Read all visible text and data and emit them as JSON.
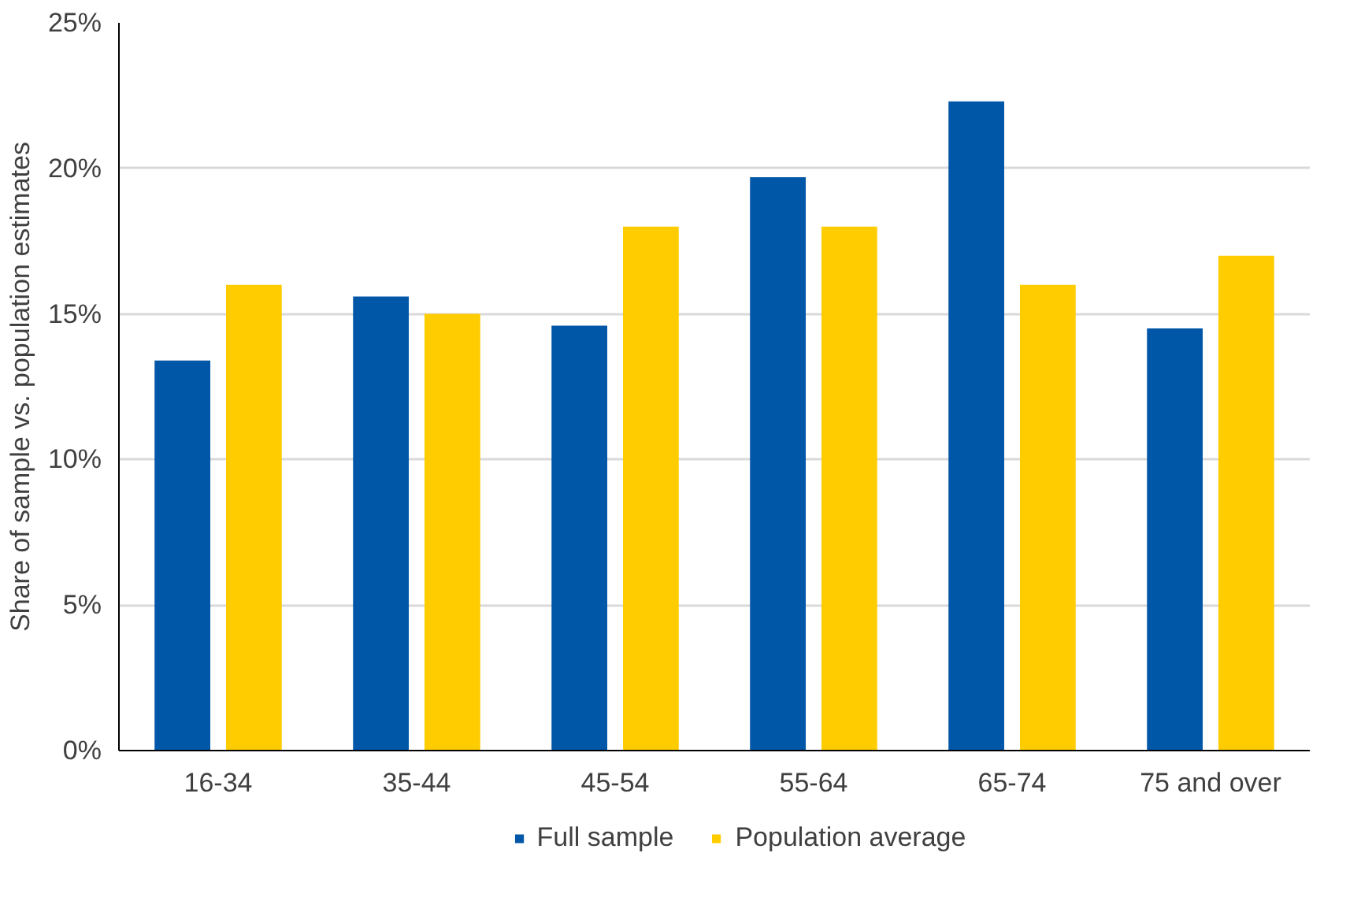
{
  "chart_data": {
    "type": "bar",
    "ylabel": "Share of sample vs. population estimates",
    "categories": [
      "16-34",
      "35-44",
      "45-54",
      "55-64",
      "65-74",
      "75 and over"
    ],
    "series": [
      {
        "name": "Full sample",
        "color": "#0056a7",
        "values": [
          13.4,
          15.6,
          14.6,
          19.7,
          22.3,
          14.5
        ]
      },
      {
        "name": "Population average",
        "color": "#ffcc00",
        "values": [
          16,
          15,
          18,
          18,
          16,
          17
        ]
      }
    ],
    "ylim": [
      0,
      25
    ],
    "yticks": [
      {
        "value": 0,
        "label": "0%"
      },
      {
        "value": 5,
        "label": "5%"
      },
      {
        "value": 10,
        "label": "10%"
      },
      {
        "value": 15,
        "label": "15%"
      },
      {
        "value": 20,
        "label": "20%"
      },
      {
        "value": 25,
        "label": "25%"
      }
    ],
    "grid": "y",
    "legend": "bottom"
  }
}
